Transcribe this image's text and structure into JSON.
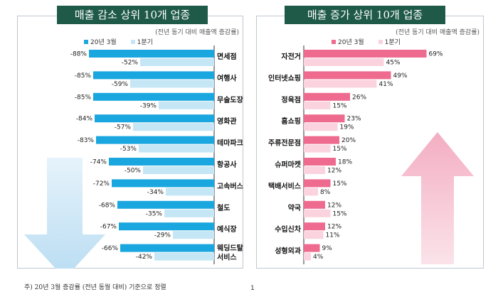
{
  "chart_data": [
    {
      "type": "bar",
      "orientation": "horizontal",
      "title": "매출 감소 상위 10개 업종",
      "note": "(전년 동기 대비 매출액 증감률)",
      "categories": [
        "면세점",
        "여행사",
        "무술도장",
        "영화관",
        "테마파크",
        "항공사",
        "고속버스",
        "철도",
        "예식장",
        "웨딩드탈 서비스"
      ],
      "category_lines": [
        [
          "면세점"
        ],
        [
          "여행사"
        ],
        [
          "무술도장"
        ],
        [
          "영화관"
        ],
        [
          "테마파크"
        ],
        [
          "항공사"
        ],
        [
          "고속버스"
        ],
        [
          "철도"
        ],
        [
          "예식장"
        ],
        [
          "웨딩드탈",
          "서비스"
        ]
      ],
      "series": [
        {
          "name": "20년 3월",
          "values": [
            -88,
            -85,
            -85,
            -84,
            -83,
            -74,
            -72,
            -68,
            -67,
            -66
          ],
          "color": "#1aa6de"
        },
        {
          "name": "1분기",
          "values": [
            -52,
            -59,
            -39,
            -57,
            -53,
            -50,
            -34,
            -35,
            -29,
            -42
          ],
          "color": "#c5e6f5"
        }
      ],
      "xlim": [
        -100,
        0
      ],
      "legend": "top",
      "arrow": "down"
    },
    {
      "type": "bar",
      "orientation": "horizontal",
      "title": "매출 증가 상위 10개 업종",
      "note": "(전년 동기 대비 매출액 증감률)",
      "categories": [
        "자전거",
        "인터넷쇼핑",
        "정육점",
        "홈쇼핑",
        "주류전문점",
        "슈퍼마켓",
        "택배서비스",
        "약국",
        "수입신차",
        "성형외과"
      ],
      "category_lines": [
        [
          "자전거"
        ],
        [
          "인터넷쇼핑"
        ],
        [
          "정육점"
        ],
        [
          "홈쇼핑"
        ],
        [
          "주류전문점"
        ],
        [
          "슈퍼마켓"
        ],
        [
          "택배서비스"
        ],
        [
          "약국"
        ],
        [
          "수입신차"
        ],
        [
          "성형외과"
        ]
      ],
      "series": [
        {
          "name": "20년 3월",
          "values": [
            69,
            49,
            26,
            23,
            20,
            18,
            15,
            12,
            12,
            9
          ],
          "color": "#ee6a8e"
        },
        {
          "name": "1분기",
          "values": [
            45,
            41,
            15,
            19,
            15,
            12,
            8,
            15,
            11,
            4
          ],
          "color": "#fad3de"
        }
      ],
      "xlim": [
        0,
        80
      ],
      "legend": "top",
      "arrow": "up"
    }
  ],
  "footnote": "주) 20년 3월 증감률 (전년 동월 대비) 기준으로 정렬",
  "page_number": "1"
}
